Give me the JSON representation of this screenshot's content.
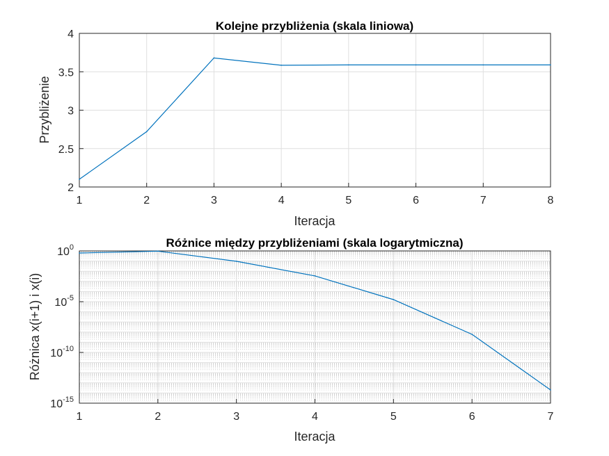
{
  "colors": {
    "line": "#0072bd",
    "grid": "#dfdfdf",
    "minor_grid": "#d0d0d0",
    "axis": "#262626"
  },
  "chart_data": [
    {
      "type": "line",
      "title": "Kolejne przybliżenia (skala liniowa)",
      "xlabel": "Iteracja",
      "ylabel": "Przybliżenie",
      "xlim": [
        1,
        8
      ],
      "ylim": [
        2,
        4
      ],
      "yscale": "linear",
      "grid": true,
      "xticks": [
        "1",
        "2",
        "3",
        "4",
        "5",
        "6",
        "7",
        "8"
      ],
      "yticks": [
        "2",
        "2.5",
        "3",
        "3.5",
        "4"
      ],
      "x": [
        1,
        2,
        3,
        4,
        5,
        6,
        7,
        8
      ],
      "series": [
        {
          "values": [
            2.1,
            2.72,
            3.68,
            3.585,
            3.589,
            3.589,
            3.589,
            3.589
          ]
        }
      ]
    },
    {
      "type": "line",
      "title": "Różnice między przybliżeniami (skala logarytmiczna)",
      "xlabel": "Iteracja",
      "ylabel": "Różnica x(i+1) i x(i)",
      "xlim": [
        1,
        7
      ],
      "ylim": [
        1e-15,
        1
      ],
      "yscale": "log",
      "grid": true,
      "xticks": [
        "1",
        "2",
        "3",
        "4",
        "5",
        "6",
        "7"
      ],
      "yticks": [
        {
          "base": "10",
          "exp": "0"
        },
        {
          "base": "10",
          "exp": "-5"
        },
        {
          "base": "10",
          "exp": "-10"
        },
        {
          "base": "10",
          "exp": "-15"
        }
      ],
      "x": [
        1,
        2,
        3,
        4,
        5,
        6,
        7
      ],
      "series": [
        {
          "values": [
            0.62,
            0.96,
            0.095,
            0.0035,
            1.6e-05,
            6e-09,
            2e-14
          ]
        }
      ]
    }
  ]
}
